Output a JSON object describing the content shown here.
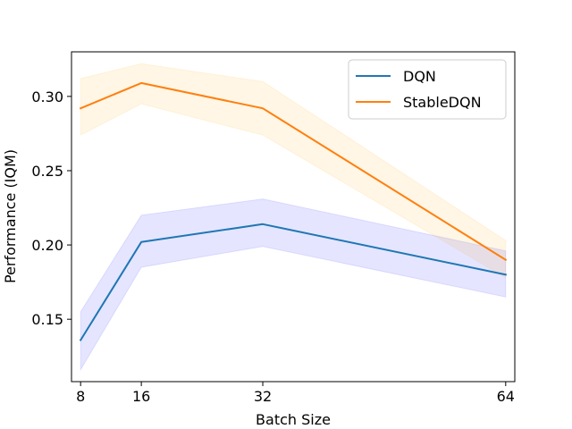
{
  "chart_data": {
    "type": "line",
    "title": "",
    "xlabel": "Batch Size",
    "ylabel": "Performance (IQM)",
    "x": [
      8,
      16,
      32,
      64
    ],
    "xticks": [
      "8",
      "16",
      "32",
      "64"
    ],
    "yticks": [
      "0.15",
      "0.20",
      "0.25",
      "0.30"
    ],
    "ytick_values": [
      0.15,
      0.2,
      0.25,
      0.3
    ],
    "xlim": [
      6.8,
      65.2
    ],
    "ylim": [
      0.108,
      0.33
    ],
    "grid": false,
    "legend_position": "top-right",
    "series": [
      {
        "name": "DQN",
        "color": "#1f77b4",
        "band_color": "#0000ff",
        "values": [
          0.136,
          0.202,
          0.214,
          0.18
        ],
        "lower": [
          0.116,
          0.185,
          0.199,
          0.165
        ],
        "upper": [
          0.155,
          0.22,
          0.231,
          0.196
        ]
      },
      {
        "name": "StableDQN",
        "color": "#ff7f0e",
        "band_color": "#ffa500",
        "values": [
          0.292,
          0.309,
          0.292,
          0.19
        ],
        "lower": [
          0.274,
          0.295,
          0.274,
          0.178
        ],
        "upper": [
          0.312,
          0.322,
          0.31,
          0.203
        ]
      }
    ]
  }
}
